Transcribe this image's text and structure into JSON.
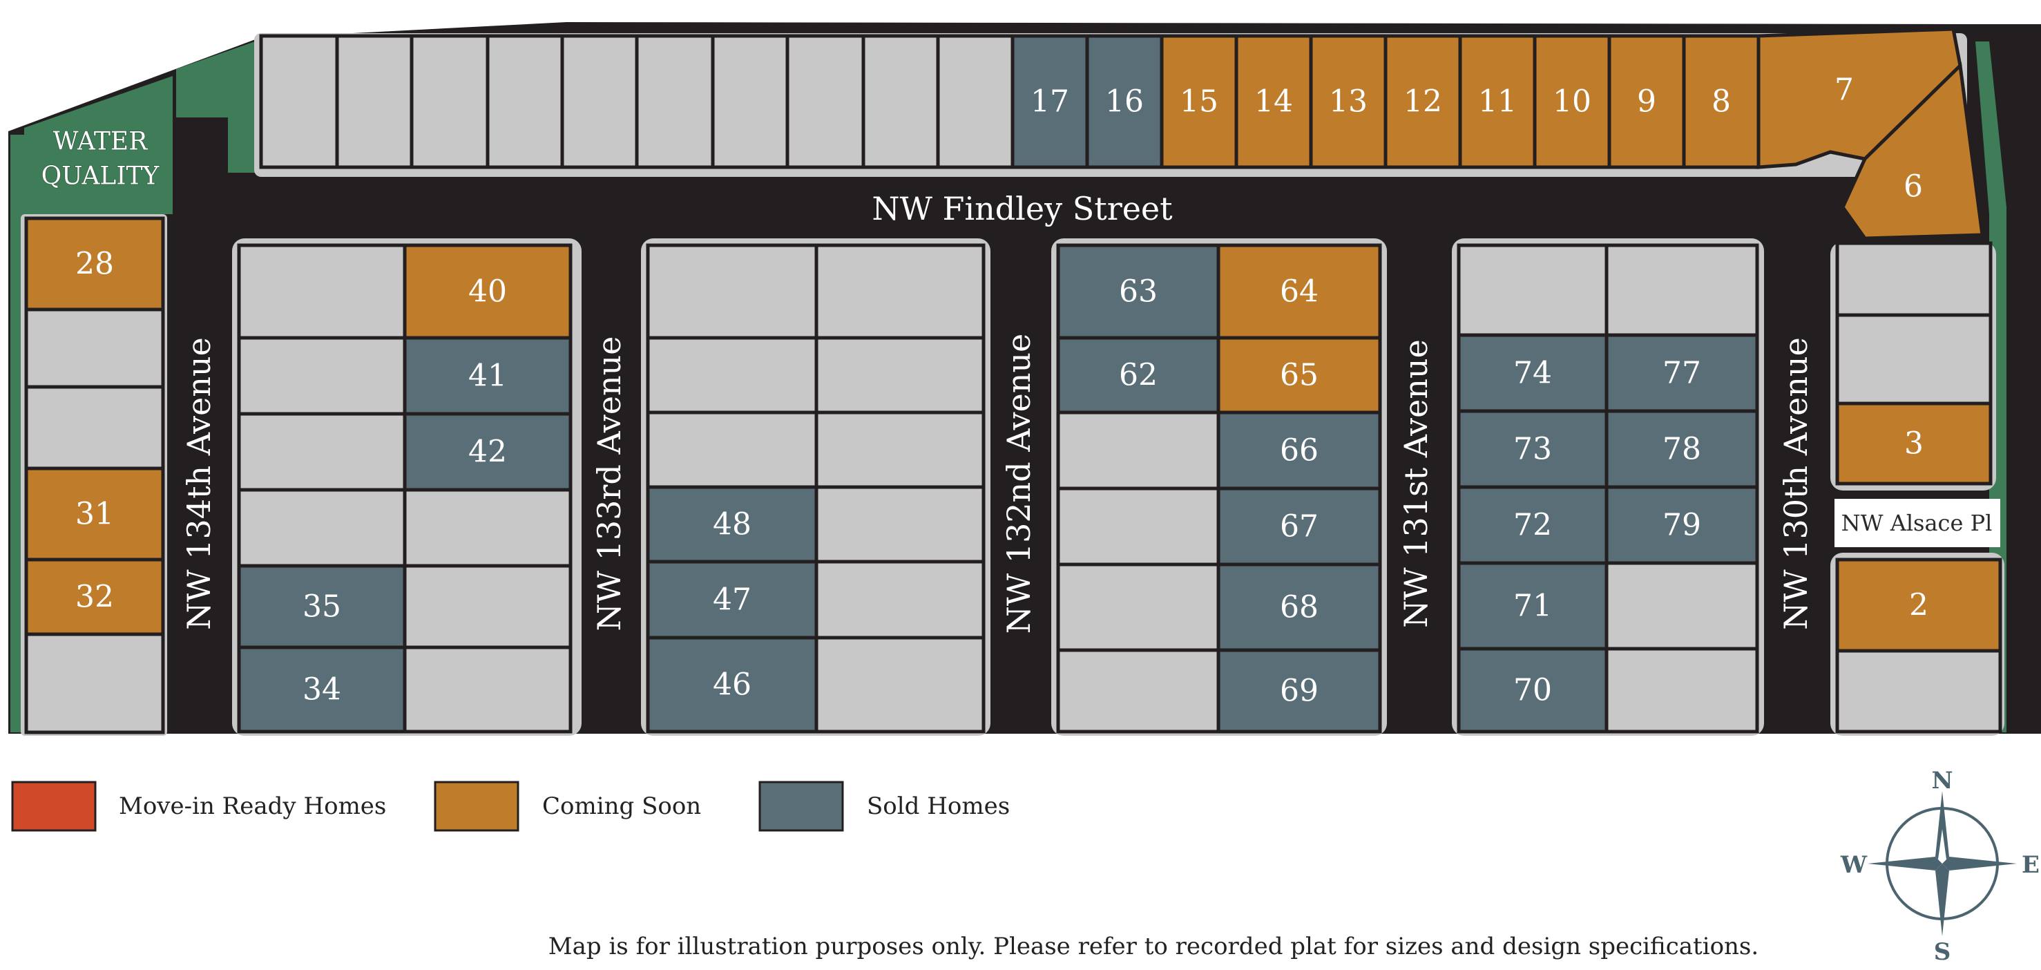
{
  "colors": {
    "road": "#231f20",
    "curb": "#c8c8c9",
    "available": "#c8c8c9",
    "coming_soon": "#bf7c2b",
    "sold": "#5a6e77",
    "move_in_ready": "#d04a2a",
    "green": "#3e7d58",
    "lot_border": "#231f20",
    "compass": "#4b6470"
  },
  "map": {
    "water_quality_label": [
      "WATER",
      "QUALITY"
    ],
    "streets": {
      "findley": "NW Findley Street",
      "ave134": "NW 134th Avenue",
      "ave133": "NW 133rd Avenue",
      "ave132": "NW 132nd Avenue",
      "ave131": "NW 131st Avenue",
      "ave130": "NW 130th Avenue",
      "alsace": "NW Alsace Pl"
    },
    "lots": [
      {
        "num": "17",
        "status": "sold"
      },
      {
        "num": "16",
        "status": "sold"
      },
      {
        "num": "15",
        "status": "coming_soon"
      },
      {
        "num": "14",
        "status": "coming_soon"
      },
      {
        "num": "13",
        "status": "coming_soon"
      },
      {
        "num": "12",
        "status": "coming_soon"
      },
      {
        "num": "11",
        "status": "coming_soon"
      },
      {
        "num": "10",
        "status": "coming_soon"
      },
      {
        "num": "9",
        "status": "coming_soon"
      },
      {
        "num": "8",
        "status": "coming_soon"
      },
      {
        "num": "7",
        "status": "coming_soon"
      },
      {
        "num": "6",
        "status": "coming_soon"
      },
      {
        "num": "3",
        "status": "coming_soon"
      },
      {
        "num": "2",
        "status": "coming_soon"
      },
      {
        "num": "28",
        "status": "coming_soon"
      },
      {
        "num": "31",
        "status": "coming_soon"
      },
      {
        "num": "32",
        "status": "coming_soon"
      },
      {
        "num": "40",
        "status": "coming_soon"
      },
      {
        "num": "41",
        "status": "sold"
      },
      {
        "num": "42",
        "status": "sold"
      },
      {
        "num": "35",
        "status": "sold"
      },
      {
        "num": "34",
        "status": "sold"
      },
      {
        "num": "48",
        "status": "sold"
      },
      {
        "num": "47",
        "status": "sold"
      },
      {
        "num": "46",
        "status": "sold"
      },
      {
        "num": "63",
        "status": "sold"
      },
      {
        "num": "64",
        "status": "coming_soon"
      },
      {
        "num": "62",
        "status": "sold"
      },
      {
        "num": "65",
        "status": "coming_soon"
      },
      {
        "num": "66",
        "status": "sold"
      },
      {
        "num": "67",
        "status": "sold"
      },
      {
        "num": "68",
        "status": "sold"
      },
      {
        "num": "69",
        "status": "sold"
      },
      {
        "num": "74",
        "status": "sold"
      },
      {
        "num": "77",
        "status": "sold"
      },
      {
        "num": "73",
        "status": "sold"
      },
      {
        "num": "78",
        "status": "sold"
      },
      {
        "num": "72",
        "status": "sold"
      },
      {
        "num": "79",
        "status": "sold"
      },
      {
        "num": "71",
        "status": "sold"
      },
      {
        "num": "70",
        "status": "sold"
      }
    ]
  },
  "legend": [
    {
      "label": "Move-in Ready Homes",
      "status": "move_in_ready"
    },
    {
      "label": "Coming Soon",
      "status": "coming_soon"
    },
    {
      "label": "Sold Homes",
      "status": "sold"
    }
  ],
  "compass": {
    "n": "N",
    "s": "S",
    "e": "E",
    "w": "W"
  },
  "disclaimer": "Map is for illustration purposes only. Please refer to recorded plat for sizes and design specifications."
}
